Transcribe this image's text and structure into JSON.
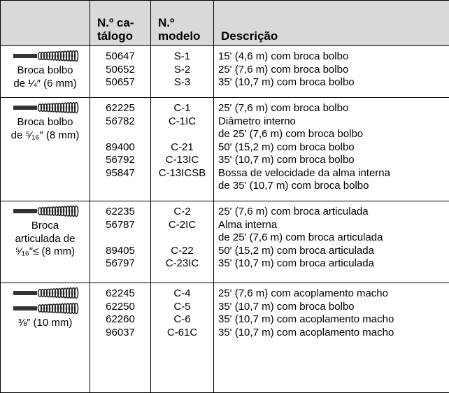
{
  "table": {
    "header": [
      "N.º ca-\ntálogo",
      "N.º\nmodelo",
      "Descrição"
    ],
    "groups": [
      {
        "label": [
          "Broca bolbo",
          "de ¼″ (6 mm)"
        ],
        "icons": 1,
        "rows": [
          {
            "catalog": "50647",
            "model": "S-1",
            "description": [
              "15' (4,6 m) com broca bolbo"
            ]
          },
          {
            "catalog": "50652",
            "model": "S-2",
            "description": [
              "25' (7,6 m) com broca bolbo"
            ]
          },
          {
            "catalog": "50657",
            "model": "S-3",
            "description": [
              "35' (10,7 m) com broca bolbo"
            ]
          }
        ]
      },
      {
        "label": [
          "Broca bolbo",
          "de ⁵⁄₁₆″ (8 mm)"
        ],
        "icons": 1,
        "rows": [
          {
            "catalog": "62225",
            "model": "C-1",
            "description": [
              "25' (7,6 m) com broca bolbo"
            ]
          },
          {
            "catalog": "56782",
            "model": "C-1IC",
            "description": [
              "Diâmetro interno",
              "de 25' (7,6 m) com broca bolbo"
            ]
          },
          {
            "catalog": "89400",
            "model": "C-21",
            "description": [
              "50' (15,2 m) com broca bolbo"
            ]
          },
          {
            "catalog": "56792",
            "model": "C-13IC",
            "description": [
              "35' (10,7 m) com broca bolbo"
            ]
          },
          {
            "catalog": "95847",
            "model": "C-13ICSB",
            "description": [
              "Bossa de velocidade da alma interna",
              "de 35' (10,7 m) com broca bolbo"
            ]
          }
        ]
      },
      {
        "label": [
          "Broca",
          "articulada de",
          "⁵⁄₁₆″≤ (8 mm)"
        ],
        "icons": 1,
        "rows": [
          {
            "catalog": "62235",
            "model": "C-2",
            "description": [
              "25' (7,6 m) com broca articulada"
            ]
          },
          {
            "catalog": "56787",
            "model": "C-2IC",
            "description": [
              "Alma interna",
              "de 25' (7,6 m) com broca articulada"
            ]
          },
          {
            "catalog": "89405",
            "model": "C-22",
            "description": [
              "50' (15,2 m) com broca articulada"
            ]
          },
          {
            "catalog": "56797",
            "model": "C-23IC",
            "description": [
              "35' (10,7 m) com broca articulada"
            ]
          }
        ]
      },
      {
        "label": [
          "⅜″ (10 mm)"
        ],
        "icons": 2,
        "rows": [
          {
            "catalog": "62245",
            "model": "C-4",
            "description": [
              "25' (7,6 m) com acoplamento macho"
            ]
          },
          {
            "catalog": "62250",
            "model": "C-5",
            "description": [
              "35' (10,7 m) com broca bolbo"
            ]
          },
          {
            "catalog": "62260",
            "model": "C-6",
            "description": [
              "35' (10,7 m) com acoplamento macho"
            ]
          },
          {
            "catalog": "96037",
            "model": "C-61C",
            "description": [
              "35' (10,7 m) com acoplamento macho"
            ]
          }
        ]
      }
    ]
  }
}
